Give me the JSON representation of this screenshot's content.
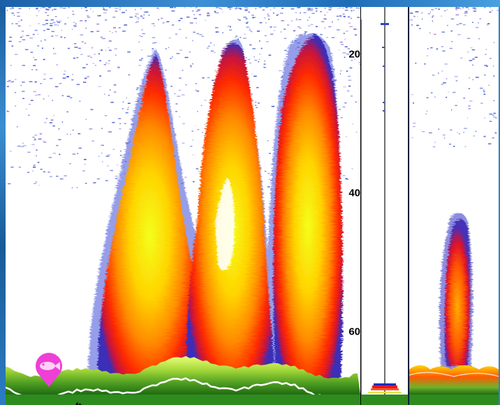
{
  "depth_scale": {
    "unit": "ft",
    "ticks": [
      {
        "label": "20",
        "value": 20
      },
      {
        "label": "40",
        "value": 40
      },
      {
        "label": "60",
        "value": 60
      }
    ]
  },
  "icons": {
    "fish_marker": "fish-target-icon"
  },
  "colors": {
    "echo_strong": "#ff1a00",
    "echo_mid": "#ff9900",
    "echo_weak": "#ffee00",
    "echo_faint": "#2233cc",
    "bottom_green": "#2e8b1e",
    "marker_magenta": "#ee3fd6",
    "background": "#ffffff"
  }
}
